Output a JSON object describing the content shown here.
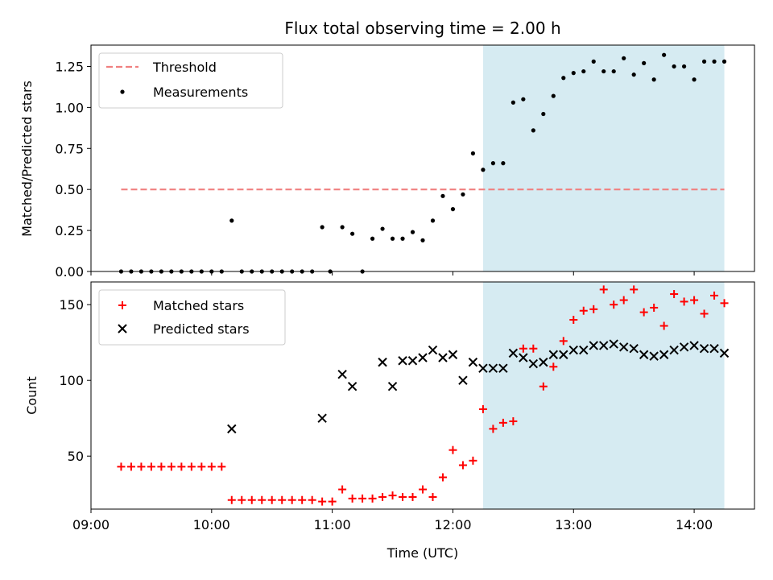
{
  "title": "Flux total observing time = 2.00 h",
  "colors": {
    "threshold": "#f08080",
    "measurement": "#000000",
    "matched": "#ff0000",
    "predicted": "#000000",
    "span": "#add8e6"
  },
  "chart_data": [
    {
      "type": "scatter",
      "ylabel": "Matched/Predicted stars",
      "xlim": [
        "09:00",
        "14:30"
      ],
      "ylim": [
        0,
        1.38
      ],
      "yticks": [
        0.0,
        0.25,
        0.5,
        0.75,
        1.0,
        1.25
      ],
      "ytick_labels": [
        "0.00",
        "0.25",
        "0.50",
        "0.75",
        "1.00",
        "1.25"
      ],
      "highlight_span": [
        "12:15",
        "14:15"
      ],
      "legend": {
        "position": "upper left",
        "entries": [
          "Threshold",
          "Measurements"
        ]
      },
      "threshold": {
        "name": "Threshold",
        "y": 0.5,
        "x_range": [
          "09:15",
          "14:15"
        ]
      },
      "series": [
        {
          "name": "Measurements",
          "x": [
            "09:15",
            "09:20",
            "09:25",
            "09:30",
            "09:35",
            "09:40",
            "09:45",
            "09:50",
            "09:55",
            "10:00",
            "10:05",
            "10:10",
            "10:15",
            "10:20",
            "10:25",
            "10:30",
            "10:35",
            "10:40",
            "10:45",
            "10:50",
            "10:55",
            "10:59",
            "11:05",
            "11:10",
            "11:15",
            "11:20",
            "11:25",
            "11:30",
            "11:35",
            "11:40",
            "11:45",
            "11:50",
            "11:55",
            "12:00",
            "12:05",
            "12:10",
            "12:15",
            "12:20",
            "12:25",
            "12:30",
            "12:35",
            "12:40",
            "12:45",
            "12:50",
            "12:55",
            "13:00",
            "13:05",
            "13:10",
            "13:15",
            "13:20",
            "13:25",
            "13:30",
            "13:35",
            "13:40",
            "13:45",
            "13:50",
            "13:55",
            "14:00",
            "14:05",
            "14:10",
            "14:15"
          ],
          "y": [
            0,
            0,
            0,
            0,
            0,
            0,
            0,
            0,
            0,
            0,
            0,
            0.31,
            0,
            0,
            0,
            0,
            0,
            0,
            0,
            0,
            0.27,
            0,
            0.27,
            0.23,
            0,
            0.2,
            0.26,
            0.2,
            0.2,
            0.24,
            0.19,
            0.31,
            0.46,
            0.38,
            0.47,
            0.72,
            0.62,
            0.66,
            0.66,
            1.03,
            1.05,
            0.86,
            0.96,
            1.07,
            1.18,
            1.21,
            1.22,
            1.28,
            1.22,
            1.22,
            1.3,
            1.2,
            1.27,
            1.17,
            1.32,
            1.25,
            1.25,
            1.17,
            1.28,
            1.28,
            1.28
          ]
        }
      ]
    },
    {
      "type": "scatter",
      "xlabel": "Time (UTC)",
      "ylabel": "Count",
      "xlim": [
        "09:00",
        "14:30"
      ],
      "ylim": [
        15,
        165
      ],
      "yticks": [
        50,
        100,
        150
      ],
      "xticks": [
        "09:00",
        "10:00",
        "11:00",
        "12:00",
        "13:00",
        "14:00"
      ],
      "highlight_span": [
        "12:15",
        "14:15"
      ],
      "legend": {
        "position": "upper left",
        "entries": [
          "Matched stars",
          "Predicted stars"
        ]
      },
      "series": [
        {
          "name": "Matched stars",
          "marker": "+",
          "x": [
            "09:15",
            "09:20",
            "09:25",
            "09:30",
            "09:35",
            "09:40",
            "09:45",
            "09:50",
            "09:55",
            "10:00",
            "10:05",
            "10:10",
            "10:15",
            "10:20",
            "10:25",
            "10:30",
            "10:35",
            "10:40",
            "10:45",
            "10:50",
            "10:55",
            "11:00",
            "11:05",
            "11:10",
            "11:15",
            "11:20",
            "11:25",
            "11:30",
            "11:35",
            "11:40",
            "11:45",
            "11:50",
            "11:55",
            "12:00",
            "12:05",
            "12:10",
            "12:15",
            "12:20",
            "12:25",
            "12:30",
            "12:35",
            "12:40",
            "12:45",
            "12:50",
            "12:55",
            "13:00",
            "13:05",
            "13:10",
            "13:15",
            "13:20",
            "13:25",
            "13:30",
            "13:35",
            "13:40",
            "13:45",
            "13:50",
            "13:55",
            "14:00",
            "14:05",
            "14:10",
            "14:15"
          ],
          "y": [
            43,
            43,
            43,
            43,
            43,
            43,
            43,
            43,
            43,
            43,
            43,
            21,
            21,
            21,
            21,
            21,
            21,
            21,
            21,
            21,
            20,
            20,
            28,
            22,
            22,
            22,
            23,
            24,
            23,
            23,
            28,
            23,
            36,
            54,
            44,
            47,
            81,
            68,
            72,
            73,
            121,
            121,
            96,
            109,
            126,
            140,
            146,
            147,
            160,
            150,
            153,
            160,
            145,
            148,
            136,
            157,
            152,
            153,
            144,
            156,
            151
          ]
        },
        {
          "name": "Predicted stars",
          "marker": "x",
          "x": [
            "10:10",
            "10:55",
            "11:05",
            "11:10",
            "11:25",
            "11:30",
            "11:35",
            "11:40",
            "11:45",
            "11:50",
            "11:55",
            "12:00",
            "12:05",
            "12:10",
            "12:15",
            "12:20",
            "12:25",
            "12:30",
            "12:35",
            "12:40",
            "12:45",
            "12:50",
            "12:55",
            "13:00",
            "13:05",
            "13:10",
            "13:15",
            "13:20",
            "13:25",
            "13:30",
            "13:35",
            "13:40",
            "13:45",
            "13:50",
            "13:55",
            "14:00",
            "14:05",
            "14:10",
            "14:15"
          ],
          "y": [
            68,
            75,
            104,
            96,
            112,
            96,
            113,
            113,
            115,
            120,
            115,
            117,
            100,
            112,
            108,
            108,
            108,
            118,
            115,
            111,
            112,
            117,
            117,
            120,
            120,
            123,
            123,
            124,
            122,
            121,
            117,
            116,
            117,
            120,
            122,
            123,
            121,
            121,
            118
          ]
        }
      ]
    }
  ]
}
